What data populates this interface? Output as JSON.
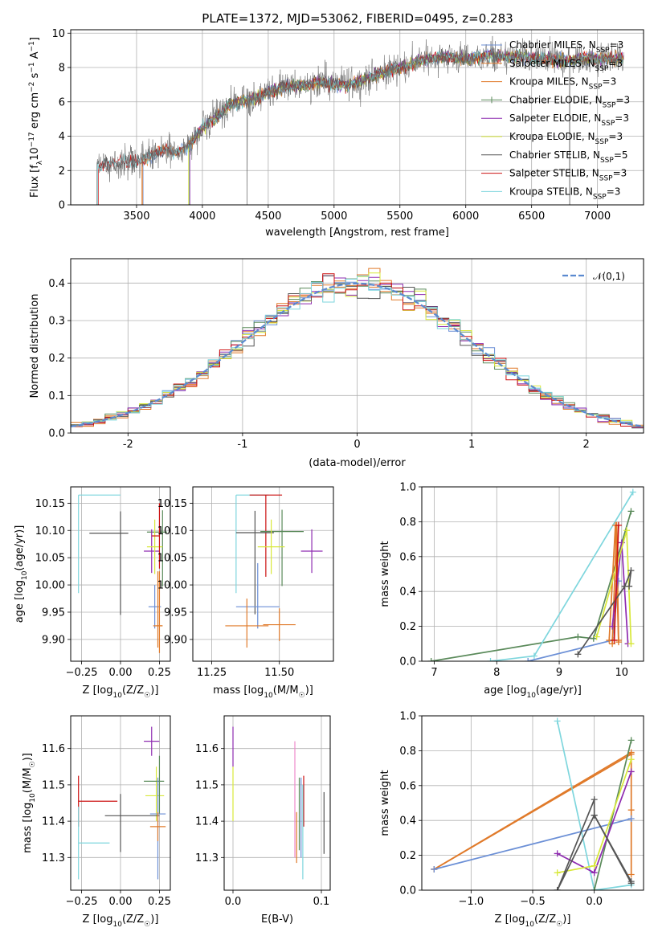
{
  "title": "PLATE=1372, MJD=53062, FIBERID=0495, z=0.283",
  "colors": {
    "Chabrier MILES": "#6b8fd6",
    "Salpeter MILES": "#e07a2a",
    "Kroupa MILES": "#e07a2a",
    "Chabrier ELODIE": "#5a8a5a",
    "Salpeter ELODIE": "#8e2bb0",
    "Kroupa ELODIE": "#d8e83a",
    "Chabrier STELIB": "#555555",
    "Salpeter STELIB": "#cc1111",
    "Kroupa STELIB": "#7ed6dd"
  },
  "chart_data": [
    {
      "type": "line",
      "xlabel": "wavelength [Angstrom, rest frame]",
      "ylabel_parts": [
        "Flux [f",
        "λ",
        "10",
        "−17",
        " erg cm",
        "−2",
        " s",
        "−1",
        " A",
        "−1",
        "]"
      ],
      "xlim": [
        3000,
        7350
      ],
      "ylim": [
        0,
        10.2
      ],
      "xticks": [
        3500,
        4000,
        4500,
        5000,
        5500,
        6000,
        6500,
        7000
      ],
      "yticks": [
        0,
        2,
        4,
        6,
        8,
        10
      ],
      "legend_position": "upper right",
      "legend": [
        {
          "name": "Chabrier MILES",
          "n": "3"
        },
        {
          "name": "Salpeter MILES",
          "n": "3"
        },
        {
          "name": "Kroupa MILES",
          "n": "3"
        },
        {
          "name": "Chabrier ELODIE",
          "n": "3"
        },
        {
          "name": "Salpeter ELODIE",
          "n": "3"
        },
        {
          "name": "Kroupa ELODIE",
          "n": "3"
        },
        {
          "name": "Chabrier STELIB",
          "n": "5"
        },
        {
          "name": "Salpeter STELIB",
          "n": "3"
        },
        {
          "name": "Kroupa STELIB",
          "n": "3"
        }
      ],
      "legend_sub": "SSP",
      "spectrum_envelope": {
        "x": [
          3200,
          3300,
          3400,
          3500,
          3600,
          3700,
          3800,
          3900,
          4000,
          4100,
          4200,
          4300,
          4400,
          4500,
          4600,
          4700,
          4800,
          4900,
          5000,
          5100,
          5200,
          5300,
          5400,
          5500,
          5600,
          5700,
          5800,
          5900,
          6000,
          6100,
          6200,
          6300,
          6400,
          6500,
          6600,
          6700,
          6800,
          6900,
          7000,
          7100,
          7200
        ],
        "y": [
          2.2,
          2.4,
          2.5,
          2.5,
          2.8,
          3.2,
          3.0,
          3.5,
          4.5,
          5.0,
          5.8,
          6.0,
          6.2,
          6.6,
          6.8,
          6.9,
          7.0,
          7.2,
          7.0,
          7.0,
          7.2,
          7.5,
          7.8,
          8.0,
          8.2,
          8.5,
          8.6,
          8.6,
          8.5,
          8.6,
          8.7,
          8.6,
          8.6,
          8.5,
          8.5,
          8.4,
          8.4,
          8.5,
          8.5,
          8.5,
          8.5
        ]
      },
      "model_starts": {
        "Chabrier MILES": 3550,
        "Salpeter MILES": 3540,
        "Kroupa MILES": 3545,
        "Chabrier ELODIE": 3900,
        "Salpeter ELODIE": 3905,
        "Kroupa ELODIE": 3895,
        "Chabrier STELIB": 3200,
        "Salpeter STELIB": 3210,
        "Kroupa STELIB": 3205
      }
    },
    {
      "type": "histogram",
      "xlabel": "(data-model)/error",
      "ylabel": "Normed distribution",
      "xlim": [
        -2.5,
        2.5
      ],
      "ylim": [
        0,
        0.465
      ],
      "xticks": [
        -2,
        -1,
        0,
        1,
        2
      ],
      "yticks": [
        0.0,
        0.1,
        0.2,
        0.3,
        0.4
      ],
      "legend": "𝒩(0,1)",
      "legend_position": "upper right",
      "bin_width": 0.1
    },
    {
      "type": "errorbar",
      "xlabel_parts": [
        "Z [log",
        "10",
        "(Z/Z",
        "☉",
        ")]"
      ],
      "ylabel_parts": [
        "age  [log",
        "10",
        "(age/yr)]"
      ],
      "xlim": [
        -0.32,
        0.32
      ],
      "ylim": [
        9.86,
        10.18
      ],
      "xticks": [
        -0.25,
        0.0,
        0.25
      ],
      "xtick_labels": [
        "−0.25",
        "0.00",
        "0.25"
      ],
      "yticks": [
        9.9,
        9.95,
        10.0,
        10.05,
        10.1,
        10.15
      ],
      "ytick_labels": [
        "9.90",
        "9.95",
        "10.00",
        "10.05",
        "10.10",
        "10.15"
      ],
      "points": [
        {
          "model": "Kroupa STELIB",
          "x": -0.27,
          "xerr": [
            0.0,
            0.27
          ],
          "y": 10.165,
          "yerr": [
            0.18,
            0.0
          ]
        },
        {
          "model": "Chabrier STELIB",
          "x": 0.0,
          "xerr": [
            0.2,
            0.05
          ],
          "y": 10.095,
          "yerr": [
            0.15,
            0.04
          ]
        },
        {
          "model": "Chabrier ELODIE",
          "x": 0.27,
          "xerr": [
            0.1,
            0.03
          ],
          "y": 10.097,
          "yerr": [
            0.1,
            0.04
          ]
        },
        {
          "model": "Salpeter ELODIE",
          "x": 0.2,
          "xerr": [
            0.05,
            0.05
          ],
          "y": 10.062,
          "yerr": [
            0.04,
            0.04
          ]
        },
        {
          "model": "Kroupa ELODIE",
          "x": 0.22,
          "xerr": [
            0.05,
            0.05
          ],
          "y": 10.07,
          "yerr": [
            0.05,
            0.05
          ]
        },
        {
          "model": "Chabrier MILES",
          "x": 0.22,
          "xerr": [
            0.04,
            0.04
          ],
          "y": 9.96,
          "yerr": [
            0.04,
            0.04
          ]
        },
        {
          "model": "Salpeter MILES",
          "x": 0.24,
          "xerr": [
            0.03,
            0.03
          ],
          "y": 9.925,
          "yerr": [
            0.04,
            0.1
          ]
        },
        {
          "model": "Kroupa MILES",
          "x": 0.25,
          "xerr": [
            0.02,
            0.02
          ],
          "y": 9.925,
          "yerr": [
            0.05,
            0.1
          ]
        },
        {
          "model": "Salpeter STELIB",
          "x": 0.25,
          "xerr": [
            0.05,
            0.0
          ],
          "y": 10.09,
          "yerr": [
            0.06,
            0.06
          ]
        }
      ]
    },
    {
      "type": "errorbar",
      "xlabel_parts": [
        "mass [log",
        "10",
        "(M/M",
        "☉",
        ")]"
      ],
      "ylabel_parts": [],
      "xlim": [
        11.18,
        11.7
      ],
      "ylim": [
        9.86,
        10.18
      ],
      "xticks": [
        11.25,
        11.5
      ],
      "xtick_labels": [
        "11.25",
        "11.50"
      ],
      "yticks": [
        9.9,
        9.95,
        10.0,
        10.05,
        10.1,
        10.15
      ],
      "ytick_labels": [
        "9.90",
        "9.95",
        "10.00",
        "10.05",
        "10.10",
        "10.15"
      ],
      "points": [
        {
          "model": "Kroupa STELIB",
          "x": 11.34,
          "xerr": [
            0.0,
            0.12
          ],
          "y": 10.165,
          "yerr": [
            0.18,
            0.0
          ]
        },
        {
          "model": "Salpeter STELIB",
          "x": 11.45,
          "xerr": [
            0.06,
            0.06
          ],
          "y": 10.165,
          "yerr": [
            0.15,
            0.0
          ]
        },
        {
          "model": "Chabrier STELIB",
          "x": 11.41,
          "xerr": [
            0.07,
            0.07
          ],
          "y": 10.096,
          "yerr": [
            0.15,
            0.04
          ]
        },
        {
          "model": "Chabrier ELODIE",
          "x": 11.51,
          "xerr": [
            0.08,
            0.08
          ],
          "y": 10.098,
          "yerr": [
            0.1,
            0.04
          ]
        },
        {
          "model": "Salpeter ELODIE",
          "x": 11.62,
          "xerr": [
            0.04,
            0.04
          ],
          "y": 10.062,
          "yerr": [
            0.04,
            0.04
          ]
        },
        {
          "model": "Kroupa ELODIE",
          "x": 11.47,
          "xerr": [
            0.05,
            0.05
          ],
          "y": 10.07,
          "yerr": [
            0.05,
            0.05
          ]
        },
        {
          "model": "Chabrier MILES",
          "x": 11.42,
          "xerr": [
            0.08,
            0.08
          ],
          "y": 9.96,
          "yerr": [
            0.04,
            0.08
          ]
        },
        {
          "model": "Salpeter MILES",
          "x": 11.38,
          "xerr": [
            0.08,
            0.08
          ],
          "y": 9.925,
          "yerr": [
            0.04,
            0.05
          ]
        },
        {
          "model": "Kroupa MILES",
          "x": 11.5,
          "xerr": [
            0.06,
            0.06
          ],
          "y": 9.927,
          "yerr": [
            0.03,
            0.03
          ]
        }
      ]
    },
    {
      "type": "line",
      "xlabel_parts": [
        "age  [log",
        "10",
        "(age/yr)]"
      ],
      "ylabel": "mass weight",
      "xlim": [
        6.8,
        10.35
      ],
      "ylim": [
        0,
        1.0
      ],
      "xticks": [
        7,
        8,
        9,
        10
      ],
      "yticks": [
        0.0,
        0.2,
        0.4,
        0.6,
        0.8,
        1.0
      ],
      "series": [
        {
          "model": "Chabrier ELODIE",
          "x": [
            6.95,
            9.3,
            9.55,
            10.15
          ],
          "y": [
            0.0,
            0.14,
            0.13,
            0.86
          ]
        },
        {
          "model": "Kroupa STELIB",
          "x": [
            7.9,
            8.6,
            10.18
          ],
          "y": [
            0.0,
            0.03,
            0.97
          ]
        },
        {
          "model": "Chabrier MILES",
          "x": [
            8.5,
            9.85,
            9.95
          ],
          "y": [
            0.0,
            0.12,
            0.46
          ]
        },
        {
          "model": "Salpeter MILES",
          "x": [
            9.8,
            9.9,
            9.95
          ],
          "y": [
            0.12,
            0.78,
            0.11
          ]
        },
        {
          "model": "Kroupa MILES",
          "x": [
            9.85,
            9.92,
            9.95
          ],
          "y": [
            0.1,
            0.78,
            0.12
          ]
        },
        {
          "model": "Salpeter ELODIE",
          "x": [
            9.85,
            10.0,
            10.1
          ],
          "y": [
            0.2,
            0.68,
            0.1
          ]
        },
        {
          "model": "Kroupa ELODIE",
          "x": [
            9.6,
            10.08,
            10.15
          ],
          "y": [
            0.14,
            0.75,
            0.1
          ]
        },
        {
          "model": "Chabrier STELIB",
          "x": [
            9.3,
            10.05,
            10.15,
            10.12
          ],
          "y": [
            0.04,
            0.43,
            0.52,
            0.43
          ]
        },
        {
          "model": "Salpeter STELIB",
          "x": [
            9.88,
            9.95
          ],
          "y": [
            0.12,
            0.78
          ]
        }
      ]
    },
    {
      "type": "errorbar",
      "xlabel_parts": [
        "Z [log",
        "10",
        "(Z/Z",
        "☉",
        ")]"
      ],
      "ylabel_parts": [
        "mass [log",
        "10",
        "(M/M",
        "☉",
        ")]"
      ],
      "xlim": [
        -0.32,
        0.32
      ],
      "ylim": [
        11.21,
        11.69
      ],
      "xticks": [
        -0.25,
        0.0,
        0.25
      ],
      "xtick_labels": [
        "−0.25",
        "0.00",
        "0.25"
      ],
      "yticks": [
        11.3,
        11.4,
        11.5,
        11.6
      ],
      "ytick_labels": [
        "11.3",
        "11.4",
        "11.5",
        "11.6"
      ],
      "points": [
        {
          "model": "Salpeter ELODIE",
          "x": 0.2,
          "xerr": [
            0.05,
            0.05
          ],
          "y": 11.62,
          "yerr": [
            0.04,
            0.04
          ]
        },
        {
          "model": "Kroupa ELODIE",
          "x": 0.23,
          "xerr": [
            0.07,
            0.05
          ],
          "y": 11.47,
          "yerr": [
            0.07,
            0.08
          ]
        },
        {
          "model": "Chabrier ELODIE",
          "x": 0.25,
          "xerr": [
            0.1,
            0.03
          ],
          "y": 11.51,
          "yerr": [
            0.09,
            0.07
          ]
        },
        {
          "model": "Salpeter STELIB",
          "x": -0.27,
          "xerr": [
            0.0,
            0.25
          ],
          "y": 11.455,
          "yerr": [
            0.07,
            0.07
          ]
        },
        {
          "model": "Chabrier STELIB",
          "x": 0.0,
          "xerr": [
            0.1,
            0.25
          ],
          "y": 11.415,
          "yerr": [
            0.1,
            0.06
          ]
        },
        {
          "model": "Chabrier MILES",
          "x": 0.24,
          "xerr": [
            0.05,
            0.05
          ],
          "y": 11.42,
          "yerr": [
            0.18,
            0.1
          ]
        },
        {
          "model": "Salpeter MILES",
          "x": 0.24,
          "xerr": [
            0.05,
            0.05
          ],
          "y": 11.385,
          "yerr": [
            0.04,
            0.04
          ]
        },
        {
          "model": "Kroupa STELIB",
          "x": -0.27,
          "xerr": [
            0.0,
            0.2
          ],
          "y": 11.34,
          "yerr": [
            0.1,
            0.1
          ]
        }
      ]
    },
    {
      "type": "errorbar",
      "xlabel": "E(B-V)",
      "ylabel_parts": [],
      "xlim": [
        -0.01,
        0.11
      ],
      "ylim": [
        11.21,
        11.69
      ],
      "xticks": [
        0.0,
        0.1
      ],
      "xtick_labels": [
        "0.0",
        "0.1"
      ],
      "yticks": [
        11.3,
        11.4,
        11.5,
        11.6
      ],
      "ytick_labels": [
        "11.3",
        "11.4",
        "11.5",
        "11.6"
      ],
      "points": [
        {
          "model": "Salpeter ELODIE",
          "x": 0.0,
          "y": 11.62,
          "yerr": [
            0.07,
            0.04
          ]
        },
        {
          "model": "Kroupa ELODIE",
          "x": 0.0,
          "y": 11.47,
          "yerr": [
            0.07,
            0.08
          ]
        },
        {
          "model": "Salpeter STELIB",
          "x": 0.08,
          "y": 11.455,
          "yerr": [
            0.07,
            0.07
          ]
        },
        {
          "model": "Chabrier MILES",
          "x": 0.077,
          "y": 11.42,
          "yerr": [
            0.12,
            0.1
          ]
        },
        {
          "model": "Salpeter MILES",
          "x": 0.072,
          "y": 11.385,
          "yerr": [
            0.1,
            0.04
          ]
        },
        {
          "model": "Chabrier STELIB",
          "x": 0.103,
          "y": 11.39,
          "yerr": [
            0.08,
            0.09
          ]
        },
        {
          "model": "Kroupa STELIB",
          "x": 0.079,
          "y": 11.36,
          "yerr": [
            0.12,
            0.14
          ]
        },
        {
          "model": "Chabrier ELODIE",
          "x": 0.075,
          "y": 11.42,
          "yerr": [
            0.1,
            0.1
          ]
        }
      ],
      "extra_color": "#ee88cc"
    },
    {
      "type": "line",
      "xlabel_parts": [
        "Z [log",
        "10",
        "(Z/Z",
        "☉",
        ")]"
      ],
      "ylabel": "mass weight",
      "xlim": [
        -1.4,
        0.4
      ],
      "ylim": [
        0,
        1.0
      ],
      "xticks": [
        -1.0,
        -0.5,
        0.0
      ],
      "xtick_labels": [
        "−1.0",
        "−0.5",
        "0.0"
      ],
      "yticks": [
        0.0,
        0.2,
        0.4,
        0.6,
        0.8,
        1.0
      ],
      "series": [
        {
          "model": "Salpeter MILES",
          "x": [
            -1.3,
            0.3,
            0.3,
            0.3
          ],
          "y": [
            0.12,
            0.78,
            0.46,
            0.09
          ]
        },
        {
          "model": "Kroupa MILES",
          "x": [
            -1.3,
            0.3
          ],
          "y": [
            0.12,
            0.79
          ]
        },
        {
          "model": "Chabrier MILES",
          "x": [
            -1.3,
            0.3
          ],
          "y": [
            0.12,
            0.41
          ]
        },
        {
          "model": "Kroupa STELIB",
          "x": [
            -0.3,
            0.0,
            0.3
          ],
          "y": [
            0.97,
            0.0,
            0.03
          ]
        },
        {
          "model": "Chabrier ELODIE",
          "x": [
            0.0,
            0.3
          ],
          "y": [
            0.0,
            0.86
          ]
        },
        {
          "model": "Salpeter ELODIE",
          "x": [
            -0.3,
            0.0,
            0.3
          ],
          "y": [
            0.21,
            0.1,
            0.68
          ]
        },
        {
          "model": "Kroupa ELODIE",
          "x": [
            -0.3,
            0.0,
            0.3
          ],
          "y": [
            0.1,
            0.14,
            0.75
          ]
        },
        {
          "model": "Chabrier STELIB",
          "x": [
            -0.3,
            0.0,
            0.0,
            0.3
          ],
          "y": [
            0.0,
            0.52,
            0.43,
            0.05
          ]
        },
        {
          "model": "Chabrier STELIB",
          "x": [
            -0.3,
            0.0,
            0.3
          ],
          "y": [
            0.0,
            0.43,
            0.04
          ]
        }
      ]
    }
  ]
}
